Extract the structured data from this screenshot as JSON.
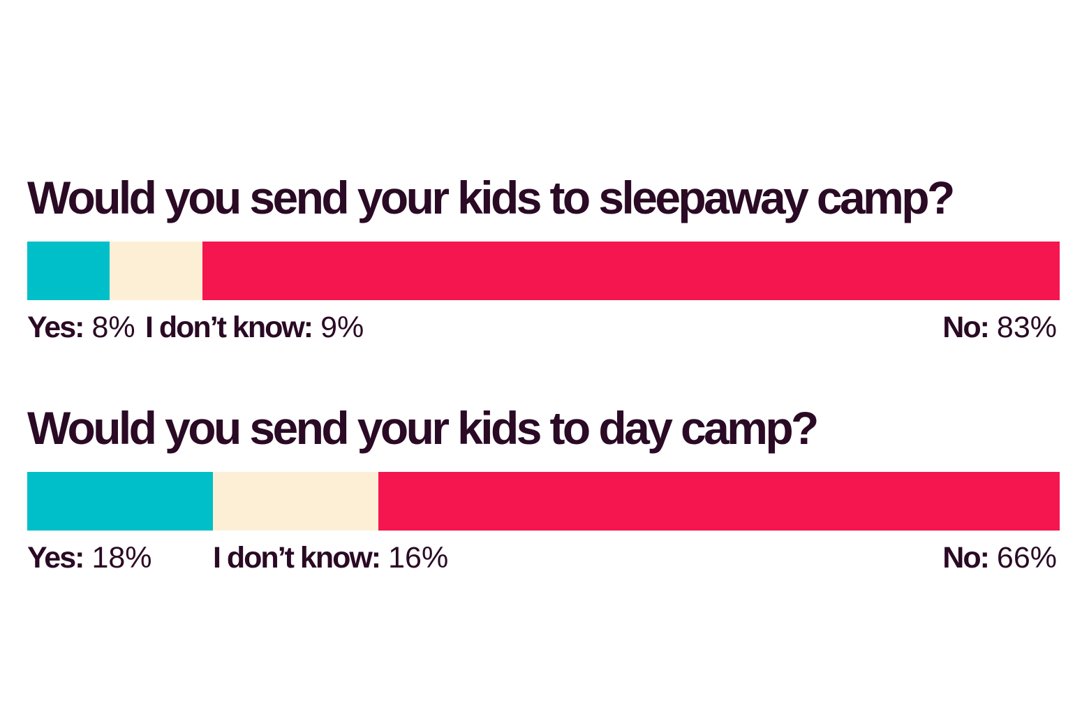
{
  "colors": {
    "yes": "#00bfc8",
    "dont_know": "#fdefd6",
    "no": "#f5154f",
    "text": "#2a0a24"
  },
  "chart_data": [
    {
      "type": "bar",
      "stacked": true,
      "orientation": "horizontal",
      "title": "Would you send your kids to sleepaway camp?",
      "categories": [
        "Yes:",
        "I don’t know:",
        "No:"
      ],
      "values": [
        8,
        9,
        83
      ],
      "value_labels": [
        "8%",
        "9%",
        "83%"
      ],
      "colors": [
        "#00bfc8",
        "#fdefd6",
        "#f5154f"
      ],
      "xlim": [
        0,
        100
      ]
    },
    {
      "type": "bar",
      "stacked": true,
      "orientation": "horizontal",
      "title": "Would you send your kids to day camp?",
      "categories": [
        "Yes:",
        "I don’t know:",
        "No:"
      ],
      "values": [
        18,
        16,
        66
      ],
      "value_labels": [
        "18%",
        "16%",
        "66%"
      ],
      "colors": [
        "#00bfc8",
        "#fdefd6",
        "#f5154f"
      ],
      "xlim": [
        0,
        100
      ]
    }
  ]
}
